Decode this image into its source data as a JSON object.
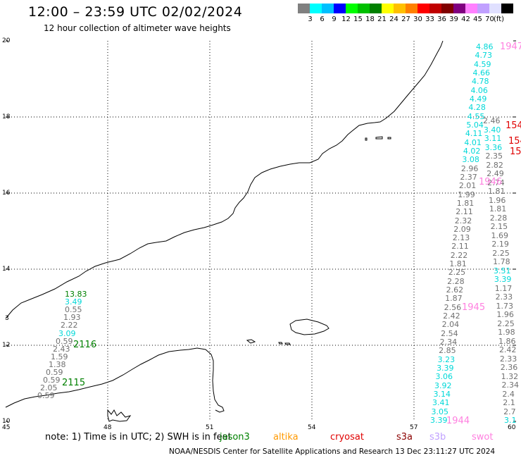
{
  "header": {
    "title": "12:00 – 23:59 UTC 02/02/2024",
    "subtitle": "12 hour collection of altimeter wave heights"
  },
  "legend": {
    "colors": [
      "#808080",
      "#00ffff",
      "#00c0ff",
      "#0000ff",
      "#00ff00",
      "#00c000",
      "#008000",
      "#ffff00",
      "#ffc000",
      "#ff8000",
      "#ff0000",
      "#c00000",
      "#800000",
      "#800080",
      "#ff80ff",
      "#c0a0ff",
      "#e0e0ff",
      "#000000"
    ],
    "labels": [
      "3",
      "6",
      "9",
      "12",
      "15",
      "18",
      "21",
      "24",
      "27",
      "30",
      "33",
      "36",
      "39",
      "42",
      "45",
      "70"
    ],
    "unit": "(ft)"
  },
  "map": {
    "lon_ticks": [
      "45",
      "48",
      "51",
      "54",
      "57",
      "60"
    ],
    "lat_ticks": [
      "20",
      "18",
      "16",
      "14",
      "12",
      "10"
    ],
    "extra_lat_label": "3",
    "lon_range": [
      45,
      60
    ],
    "lat_range": [
      10,
      20
    ],
    "grid": "dotted",
    "label_colors": {
      "gray": "#707070",
      "cyan": "#00d8d8",
      "green": "#008000",
      "red": "#e00000",
      "pink": "#ff80e0",
      "black": "#000000"
    },
    "cluster_left": [
      {
        "t": "13.83",
        "c": "green"
      },
      {
        "t": "3.49",
        "c": "cyan"
      },
      {
        "t": "0.55",
        "c": "gray"
      },
      {
        "t": "1.93",
        "c": "gray"
      },
      {
        "t": "2.22",
        "c": "gray"
      },
      {
        "t": "3.09",
        "c": "cyan"
      },
      {
        "t": "0.59",
        "c": "gray"
      },
      {
        "t": "2.43",
        "c": "gray"
      },
      {
        "t": "1.59",
        "c": "gray"
      },
      {
        "t": "1.38",
        "c": "gray"
      },
      {
        "t": "0.59",
        "c": "gray"
      },
      {
        "t": "0.59",
        "c": "gray"
      },
      {
        "t": "2.05",
        "c": "gray"
      },
      {
        "t": "0.59",
        "c": "gray"
      }
    ],
    "track_labels_left": [
      {
        "t": "2116",
        "c": "green"
      },
      {
        "t": "2115",
        "c": "green"
      }
    ],
    "col_a": [
      {
        "t": "4.86",
        "c": "cyan"
      },
      {
        "t": "4.73",
        "c": "cyan"
      },
      {
        "t": "4.59",
        "c": "cyan"
      },
      {
        "t": "4.66",
        "c": "cyan"
      },
      {
        "t": "4.78",
        "c": "cyan"
      },
      {
        "t": "4.06",
        "c": "cyan"
      },
      {
        "t": "4.49",
        "c": "cyan"
      },
      {
        "t": "4.28",
        "c": "cyan"
      },
      {
        "t": "4.55",
        "c": "cyan"
      },
      {
        "t": "5.04",
        "c": "cyan"
      },
      {
        "t": "4.11",
        "c": "cyan"
      },
      {
        "t": "4.01",
        "c": "cyan"
      },
      {
        "t": "4.02",
        "c": "cyan"
      },
      {
        "t": "3.08",
        "c": "cyan"
      },
      {
        "t": "2.96",
        "c": "gray"
      },
      {
        "t": "2.37",
        "c": "gray"
      },
      {
        "t": "2.01",
        "c": "gray"
      },
      {
        "t": "1.99",
        "c": "gray"
      },
      {
        "t": "1.81",
        "c": "gray"
      },
      {
        "t": "2.11",
        "c": "gray"
      },
      {
        "t": "2.32",
        "c": "gray"
      },
      {
        "t": "2.09",
        "c": "gray"
      },
      {
        "t": "2.13",
        "c": "gray"
      },
      {
        "t": "2.11",
        "c": "gray"
      },
      {
        "t": "2.22",
        "c": "gray"
      },
      {
        "t": "1.81",
        "c": "gray"
      },
      {
        "t": "2.25",
        "c": "gray"
      },
      {
        "t": "2.28",
        "c": "gray"
      },
      {
        "t": "2.62",
        "c": "gray"
      },
      {
        "t": "1.87",
        "c": "gray"
      },
      {
        "t": "2.56",
        "c": "gray"
      },
      {
        "t": "2.42",
        "c": "gray"
      },
      {
        "t": "2.04",
        "c": "gray"
      },
      {
        "t": "2.54",
        "c": "gray"
      },
      {
        "t": "2.34",
        "c": "gray"
      },
      {
        "t": "2.85",
        "c": "gray"
      },
      {
        "t": "3.23",
        "c": "cyan"
      },
      {
        "t": "3.39",
        "c": "cyan"
      },
      {
        "t": "3.06",
        "c": "cyan"
      },
      {
        "t": "3.92",
        "c": "cyan"
      },
      {
        "t": "3.14",
        "c": "cyan"
      },
      {
        "t": "3.41",
        "c": "cyan"
      },
      {
        "t": "3.05",
        "c": "cyan"
      },
      {
        "t": "3.39",
        "c": "cyan"
      }
    ],
    "col_b": [
      {
        "t": "2.46",
        "c": "gray"
      },
      {
        "t": "3.40",
        "c": "cyan"
      },
      {
        "t": "3.11",
        "c": "cyan"
      },
      {
        "t": "3.36",
        "c": "cyan"
      },
      {
        "t": "2.35",
        "c": "gray"
      },
      {
        "t": "2.82",
        "c": "gray"
      },
      {
        "t": "2.49",
        "c": "gray"
      },
      {
        "t": "2.74",
        "c": "gray"
      },
      {
        "t": "1.81",
        "c": "gray"
      },
      {
        "t": "1.96",
        "c": "gray"
      },
      {
        "t": "1.81",
        "c": "gray"
      },
      {
        "t": "2.28",
        "c": "gray"
      },
      {
        "t": "2.15",
        "c": "gray"
      },
      {
        "t": "1.69",
        "c": "gray"
      },
      {
        "t": "2.19",
        "c": "gray"
      },
      {
        "t": "2.25",
        "c": "gray"
      },
      {
        "t": "1.78",
        "c": "gray"
      },
      {
        "t": "3.51",
        "c": "cyan"
      },
      {
        "t": "3.39",
        "c": "cyan"
      },
      {
        "t": "1.17",
        "c": "gray"
      },
      {
        "t": "2.33",
        "c": "gray"
      },
      {
        "t": "1.73",
        "c": "gray"
      },
      {
        "t": "1.96",
        "c": "gray"
      },
      {
        "t": "2.25",
        "c": "gray"
      },
      {
        "t": "1.98",
        "c": "gray"
      },
      {
        "t": "1.86",
        "c": "gray"
      },
      {
        "t": "2.42",
        "c": "gray"
      },
      {
        "t": "2.33",
        "c": "gray"
      },
      {
        "t": "2.36",
        "c": "gray"
      },
      {
        "t": "1.32",
        "c": "gray"
      },
      {
        "t": "2.34",
        "c": "gray"
      },
      {
        "t": "2.4",
        "c": "gray"
      },
      {
        "t": "2.1",
        "c": "gray"
      },
      {
        "t": "2.7",
        "c": "gray"
      },
      {
        "t": "3.1",
        "c": "cyan"
      }
    ],
    "track_labels_right": [
      {
        "t": "1947",
        "c": "pink"
      },
      {
        "t": "154",
        "c": "red"
      },
      {
        "t": "154",
        "c": "red"
      },
      {
        "t": "15",
        "c": "red"
      },
      {
        "t": "1946",
        "c": "pink"
      },
      {
        "t": "1945",
        "c": "pink"
      },
      {
        "t": "1944",
        "c": "pink"
      }
    ]
  },
  "footer": {
    "note": "note:  1) Time is in UTC;  2) SWH is in feet",
    "satellites": [
      {
        "name": "jason3",
        "color": "#008000"
      },
      {
        "name": "altika",
        "color": "#ff9900"
      },
      {
        "name": "cryosat",
        "color": "#e00000"
      },
      {
        "name": "s3a",
        "color": "#8b0000"
      },
      {
        "name": "s3b",
        "color": "#c0a0ff"
      },
      {
        "name": "swot",
        "color": "#ff80e0"
      }
    ],
    "credit": "NOAA/NESDIS Center for Satellite Applications and Research    13 Dec 23:11:27 UTC 2024"
  }
}
